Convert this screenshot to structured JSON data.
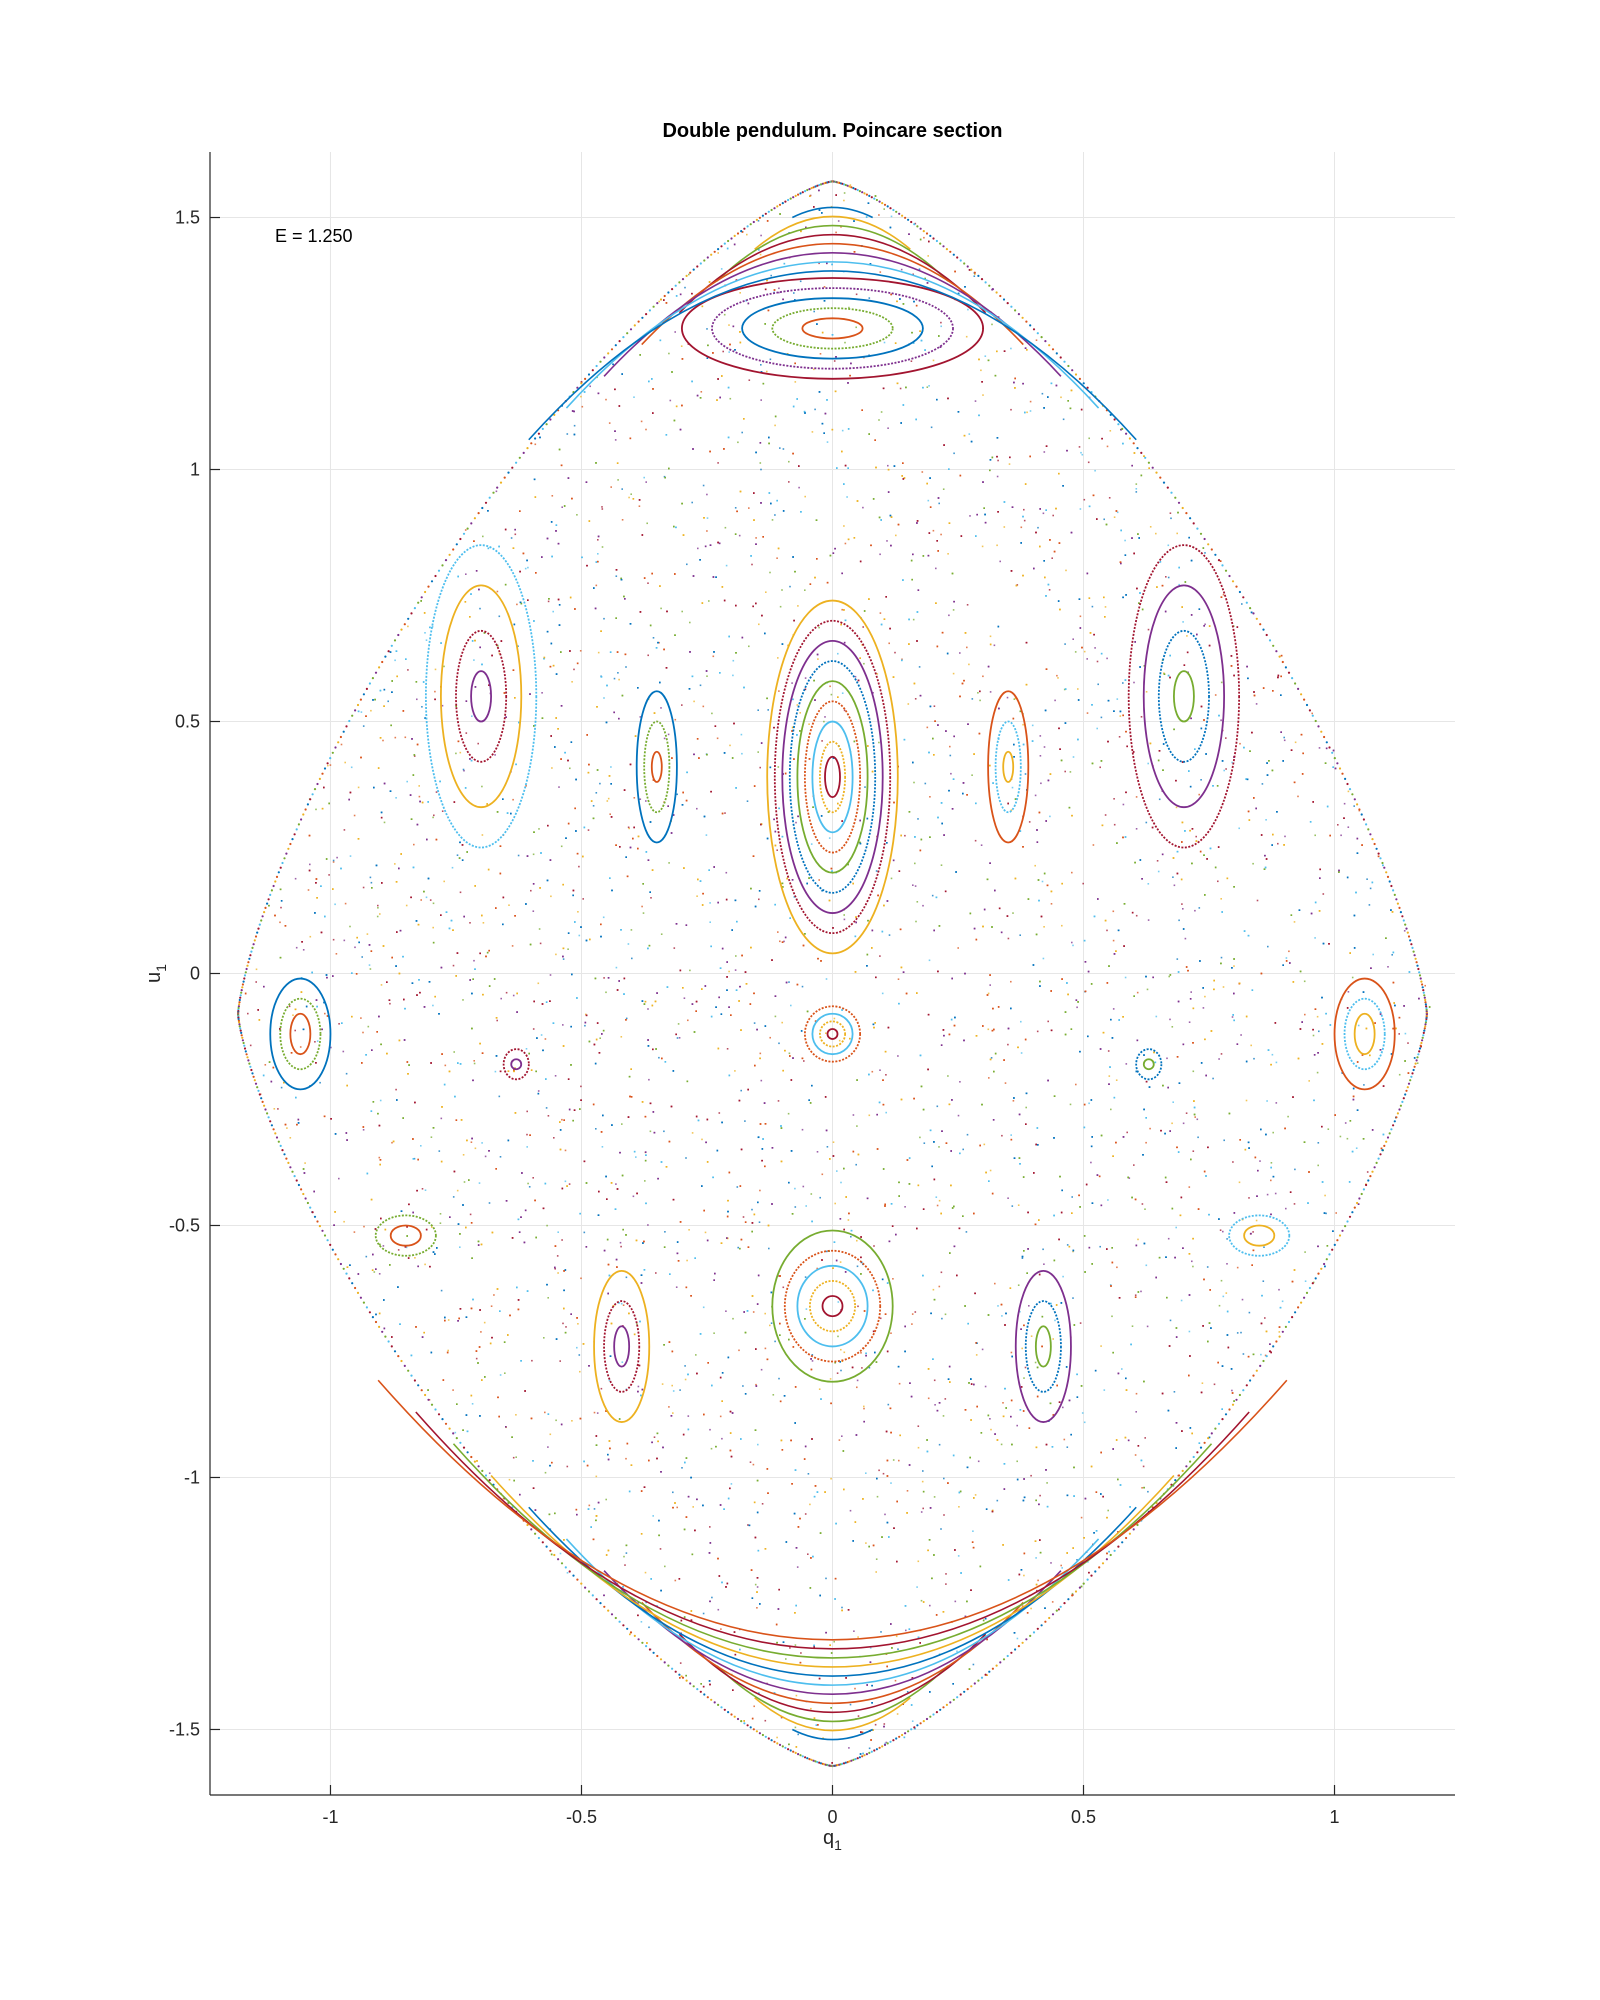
{
  "chart_data": {
    "type": "scatter",
    "title": "Double pendulum. Poincare section",
    "xlabel": "q",
    "xlabel_sub": "1",
    "ylabel": "u",
    "ylabel_sub": "1",
    "annotation": "E = 1.250",
    "xlim": [
      -1.24,
      1.24
    ],
    "ylim": [
      -1.63,
      1.63
    ],
    "xticks": [
      -1,
      -0.5,
      0,
      0.5,
      1
    ],
    "xtick_labels": [
      "-1",
      "-0.5",
      "0",
      "0.5",
      "1"
    ],
    "yticks": [
      -1.5,
      -1,
      -0.5,
      0,
      0.5,
      1,
      1.5
    ],
    "ytick_labels": [
      "-1.5",
      "-1",
      "-0.5",
      "0",
      "0.5",
      "1",
      "1.5"
    ],
    "grid": true,
    "boundary": {
      "description": "energy-allowed region",
      "q_extent": [
        -1.19,
        1.19
      ],
      "u_extent": [
        -1.58,
        1.58
      ],
      "widest_at_u": -0.08
    },
    "series_colors": [
      "#0072BD",
      "#D95319",
      "#EDB120",
      "#7E2F8E",
      "#77AC30",
      "#4DBEEE",
      "#A2142F"
    ],
    "islands": [
      {
        "name": "central-upper",
        "center": [
          0,
          0.39
        ],
        "rx": [
          0.015,
          0.025,
          0.04,
          0.055,
          0.07,
          0.085,
          0.1,
          0.115,
          0.13
        ],
        "ry": [
          0.04,
          0.07,
          0.11,
          0.15,
          0.19,
          0.23,
          0.27,
          0.31,
          0.35
        ]
      },
      {
        "name": "central-lower",
        "center": [
          0,
          -0.12
        ],
        "rx": [
          0.01,
          0.025,
          0.04,
          0.055
        ],
        "ry": [
          0.01,
          0.025,
          0.04,
          0.055
        ]
      },
      {
        "name": "bottom-center",
        "center": [
          0,
          -0.66
        ],
        "rx": [
          0.02,
          0.045,
          0.07,
          0.095,
          0.12
        ],
        "ry": [
          0.02,
          0.05,
          0.08,
          0.11,
          0.15
        ]
      },
      {
        "name": "mid-left",
        "center": [
          -0.35,
          0.41
        ],
        "rx": [
          0.01,
          0.025,
          0.04
        ],
        "ry": [
          0.03,
          0.09,
          0.15
        ]
      },
      {
        "name": "mid-right",
        "center": [
          0.35,
          0.41
        ],
        "rx": [
          0.01,
          0.025,
          0.04
        ],
        "ry": [
          0.03,
          0.09,
          0.15
        ]
      },
      {
        "name": "upper-left",
        "center": [
          -0.7,
          0.55
        ],
        "rx": [
          0.02,
          0.05,
          0.08,
          0.11
        ],
        "ry": [
          0.05,
          0.13,
          0.22,
          0.3
        ]
      },
      {
        "name": "upper-right",
        "center": [
          0.7,
          0.55
        ],
        "rx": [
          0.02,
          0.05,
          0.08,
          0.11
        ],
        "ry": [
          0.05,
          0.13,
          0.22,
          0.3
        ]
      },
      {
        "name": "far-left",
        "center": [
          -1.06,
          -0.12
        ],
        "rx": [
          0.02,
          0.04,
          0.06
        ],
        "ry": [
          0.04,
          0.07,
          0.11
        ]
      },
      {
        "name": "far-right",
        "center": [
          1.06,
          -0.12
        ],
        "rx": [
          0.02,
          0.04,
          0.06
        ],
        "ry": [
          0.04,
          0.07,
          0.11
        ]
      },
      {
        "name": "lower-left",
        "center": [
          -0.42,
          -0.74
        ],
        "rx": [
          0.015,
          0.035,
          0.055
        ],
        "ry": [
          0.04,
          0.09,
          0.15
        ]
      },
      {
        "name": "lower-right",
        "center": [
          0.42,
          -0.74
        ],
        "rx": [
          0.015,
          0.035,
          0.055
        ],
        "ry": [
          0.04,
          0.09,
          0.15
        ]
      },
      {
        "name": "small-left",
        "center": [
          -0.63,
          -0.18
        ],
        "rx": [
          0.01,
          0.025
        ],
        "ry": [
          0.01,
          0.03
        ]
      },
      {
        "name": "small-right",
        "center": [
          0.63,
          -0.18
        ],
        "rx": [
          0.01,
          0.025
        ],
        "ry": [
          0.01,
          0.03
        ]
      },
      {
        "name": "top-band",
        "center": [
          0,
          1.28
        ],
        "rx": [
          0.06,
          0.12,
          0.18,
          0.24,
          0.3
        ],
        "ry": [
          0.02,
          0.04,
          0.06,
          0.08,
          0.1
        ]
      },
      {
        "name": "left-lobe-lower",
        "center": [
          -0.85,
          -0.52
        ],
        "rx": [
          0.03,
          0.06
        ],
        "ry": [
          0.02,
          0.04
        ]
      },
      {
        "name": "right-lobe-lower",
        "center": [
          0.85,
          -0.52
        ],
        "rx": [
          0.03,
          0.06
        ],
        "ry": [
          0.02,
          0.04
        ]
      }
    ],
    "bands": [
      {
        "name": "bottom-arcs",
        "u_center": -1.52,
        "count": 12
      },
      {
        "name": "top-arcs",
        "u_center": 1.52,
        "count": 8
      }
    ]
  }
}
